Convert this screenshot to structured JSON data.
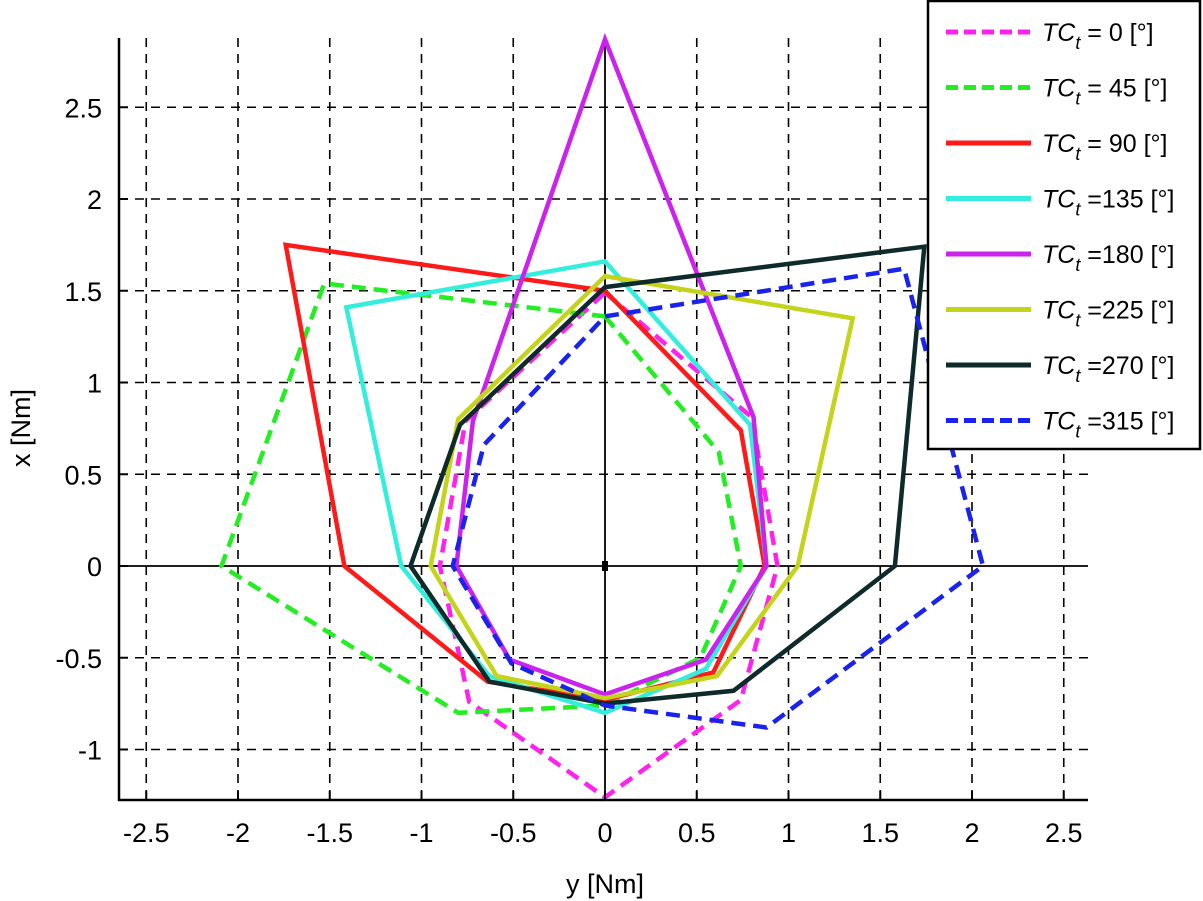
{
  "chart_data": {
    "type": "line",
    "title": "",
    "xlabel": "y [Nm]",
    "ylabel": "x [Nm]",
    "xlim": [
      -2.7,
      2.6
    ],
    "ylim": [
      -1.27,
      2.88
    ],
    "xticks": [
      -2.5,
      -2,
      -1.5,
      -1,
      -0.5,
      0,
      0.5,
      1,
      1.5,
      2,
      2.5
    ],
    "xtick_labels": [
      "-2.5",
      "-2",
      "-1.5",
      "-1",
      "-0.5",
      "0",
      "0.5",
      "1",
      "1.5",
      "2",
      "2.5"
    ],
    "yticks": [
      -1,
      -0.5,
      0,
      0.5,
      1,
      1.5,
      2,
      2.5
    ],
    "ytick_labels": [
      "-1",
      "-0.5",
      "0",
      "0.5",
      "1",
      "1.5",
      "2",
      "2.5"
    ],
    "grid": true,
    "grid_style": "dashed",
    "legend_position": "upper right (outside top-right corner)",
    "note": "Each series is a closed polygon of 8 vertices listed as [y, x] pairs (horizontal, vertical).",
    "series": [
      {
        "name": "TC_t =  0 [°]",
        "label_main": "TC",
        "label_sub": "t",
        "label_rest": " =  0 [°]",
        "color": "#ff22ee",
        "dashed": true,
        "points": [
          [
            0,
            1.49
          ],
          [
            0.8,
            0.81
          ],
          [
            0.94,
            0
          ],
          [
            0.74,
            -0.73
          ],
          [
            0,
            -1.26
          ],
          [
            -0.74,
            -0.74
          ],
          [
            -0.9,
            0
          ],
          [
            -0.76,
            0.79
          ]
        ]
      },
      {
        "name": "TC_t = 45 [°]",
        "label_main": "TC",
        "label_sub": "t",
        "label_rest": " = 45 [°]",
        "color": "#22ee22",
        "dashed": true,
        "points": [
          [
            0,
            1.36
          ],
          [
            0.62,
            0.62
          ],
          [
            0.74,
            0
          ],
          [
            0.52,
            -0.5
          ],
          [
            0,
            -0.76
          ],
          [
            -0.8,
            -0.8
          ],
          [
            -2.09,
            0
          ],
          [
            -1.53,
            1.54
          ]
        ]
      },
      {
        "name": "TC_t = 90 [°]",
        "label_main": "TC",
        "label_sub": "t",
        "label_rest": " = 90 [°]",
        "color": "#ff1a1a",
        "dashed": false,
        "points": [
          [
            0,
            1.5
          ],
          [
            0.74,
            0.74
          ],
          [
            0.87,
            0
          ],
          [
            0.59,
            -0.58
          ],
          [
            0,
            -0.73
          ],
          [
            -0.64,
            -0.63
          ],
          [
            -1.42,
            0
          ],
          [
            -1.74,
            1.75
          ]
        ]
      },
      {
        "name": "TC_t =135 [°]",
        "label_main": "TC",
        "label_sub": "t",
        "label_rest": " =135 [°]",
        "color": "#33eedd",
        "dashed": false,
        "points": [
          [
            0,
            1.66
          ],
          [
            0.79,
            0.77
          ],
          [
            0.88,
            0
          ],
          [
            0.55,
            -0.56
          ],
          [
            0,
            -0.8
          ],
          [
            -0.63,
            -0.6
          ],
          [
            -1.11,
            0
          ],
          [
            -1.41,
            1.41
          ]
        ]
      },
      {
        "name": "TC_t =180 [°]",
        "label_main": "TC",
        "label_sub": "t",
        "label_rest": " =180 [°]",
        "color": "#cc22ee",
        "dashed": false,
        "points": [
          [
            0,
            2.87
          ],
          [
            0.81,
            0.81
          ],
          [
            0.88,
            0
          ],
          [
            0.55,
            -0.51
          ],
          [
            0,
            -0.7
          ],
          [
            -0.52,
            -0.51
          ],
          [
            -0.81,
            0
          ],
          [
            -0.72,
            0.79
          ]
        ]
      },
      {
        "name": "TC_t =225 [°]",
        "label_main": "TC",
        "label_sub": "t",
        "label_rest": " =225 [°]",
        "color": "#c4d41a",
        "dashed": false,
        "points": [
          [
            0,
            1.58
          ],
          [
            1.35,
            1.35
          ],
          [
            1.05,
            0
          ],
          [
            0.61,
            -0.6
          ],
          [
            0,
            -0.72
          ],
          [
            -0.59,
            -0.6
          ],
          [
            -0.95,
            0
          ],
          [
            -0.8,
            0.8
          ]
        ]
      },
      {
        "name": "TC_t =270 [°]",
        "label_main": "TC",
        "label_sub": "t",
        "label_rest": " =270 [°]",
        "color": "#0f2a2a",
        "dashed": false,
        "points": [
          [
            0,
            1.52
          ],
          [
            1.74,
            1.74
          ],
          [
            1.58,
            0
          ],
          [
            0.7,
            -0.68
          ],
          [
            0,
            -0.75
          ],
          [
            -0.63,
            -0.63
          ],
          [
            -1.06,
            0
          ],
          [
            -0.79,
            0.77
          ]
        ]
      },
      {
        "name": "TC_t =315 [°]",
        "label_main": "TC",
        "label_sub": "t",
        "label_rest": " =315 [°]",
        "color": "#1a22ee",
        "dashed": true,
        "points": [
          [
            0,
            1.36
          ],
          [
            1.63,
            1.62
          ],
          [
            2.06,
            0
          ],
          [
            0.88,
            -0.88
          ],
          [
            0,
            -0.76
          ],
          [
            -0.51,
            -0.53
          ],
          [
            -0.83,
            0
          ],
          [
            -0.66,
            0.66
          ]
        ]
      }
    ]
  },
  "axes": {
    "x_label_main": "y",
    "x_label_unit": "[Nm]",
    "y_label_main": "x",
    "y_label_unit": "[Nm]"
  }
}
